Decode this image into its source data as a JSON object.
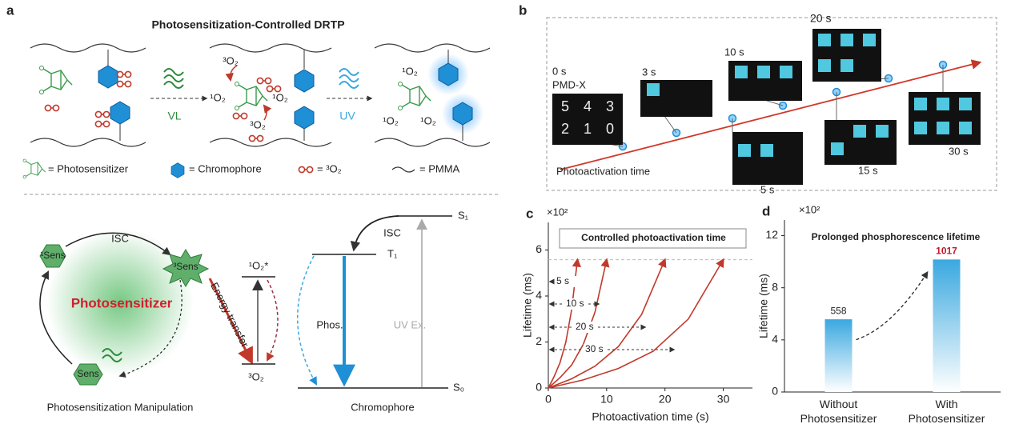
{
  "panel_a": {
    "label": "a",
    "title": "Photosensitization-Controlled DRTP",
    "step_labels": [
      "VL",
      "UV"
    ],
    "scene_2_labels": [
      "³O₂",
      "¹O₂",
      "¹O₂",
      "³O₂"
    ],
    "scene_3_labels": [
      "¹O₂",
      "¹O₂",
      "¹O₂"
    ],
    "legend": [
      "= Photosensitizer",
      "= Chromophore",
      "= ³O₂",
      "= PMMA"
    ],
    "mechanism": {
      "center": "Photosensitizer",
      "singlet_sens": "¹Sens",
      "triplet_sens": "³Sens",
      "ground_sens": "Sens",
      "isc_1": "ISC",
      "energy_transfer": "Energy transfer",
      "o2_excited": "¹O₂*",
      "o2_ground": "³O₂",
      "t1": "T₁",
      "s1": "S₁",
      "s0": "S₀",
      "isc_2": "ISC",
      "phos": "Phos.",
      "uv_ex": "UV Ex.",
      "caption_left": "Photosensitization Manipulation",
      "caption_right": "Chromophore"
    }
  },
  "panel_b": {
    "label": "b",
    "sample": "PMD-X",
    "digits": [
      "5",
      "4",
      "3",
      "2",
      "1",
      "0"
    ],
    "times": [
      "0 s",
      "3 s",
      "10 s",
      "20 s",
      "5 s",
      "15 s",
      "30 s"
    ],
    "axis_label": "Photoactivation time"
  },
  "chart_data": [
    {
      "type": "line",
      "panel_label": "c",
      "title": "Controlled photoactivation time",
      "y_multiplier": "×10²",
      "xlabel": "Photoactivation time (s)",
      "ylabel": "Lifetime (ms)",
      "xlim": [
        0,
        35
      ],
      "ylim": [
        0,
        7.2
      ],
      "xticks": [
        0,
        10,
        20,
        30
      ],
      "yticks": [
        0,
        2,
        4,
        6
      ],
      "hline": 5.58,
      "series": [
        {
          "name": "5 s",
          "color": "#c0392b",
          "x": [
            0,
            1,
            2,
            3,
            4,
            5
          ],
          "values": [
            0,
            0.5,
            1.1,
            2.0,
            3.4,
            5.58
          ]
        },
        {
          "name": "10 s",
          "color": "#c0392b",
          "x": [
            0,
            2,
            4,
            6,
            8,
            10
          ],
          "values": [
            0,
            0.45,
            1.0,
            1.9,
            3.3,
            5.58
          ]
        },
        {
          "name": "20 s",
          "color": "#c0392b",
          "x": [
            0,
            4,
            8,
            12,
            16,
            20
          ],
          "values": [
            0,
            0.4,
            0.95,
            1.8,
            3.2,
            5.58
          ]
        },
        {
          "name": "30 s",
          "color": "#c0392b",
          "x": [
            0,
            6,
            12,
            18,
            24,
            30
          ],
          "values": [
            0,
            0.35,
            0.85,
            1.6,
            3.0,
            5.58
          ]
        }
      ]
    },
    {
      "type": "bar",
      "panel_label": "d",
      "title": "Prolonged phosphorescence lifetime",
      "y_multiplier": "×10²",
      "ylabel": "Lifetime (ms)",
      "categories": [
        "Without Photosensitizer",
        "With Photosensitizer"
      ],
      "values": [
        5.58,
        10.17
      ],
      "value_labels": [
        "558",
        "1017"
      ],
      "value_label_colors": [
        "#222222",
        "#c0182b"
      ],
      "color": "#3aa8e0",
      "ylim": [
        0,
        13.2
      ],
      "yticks": [
        0,
        4,
        8,
        12
      ]
    }
  ]
}
